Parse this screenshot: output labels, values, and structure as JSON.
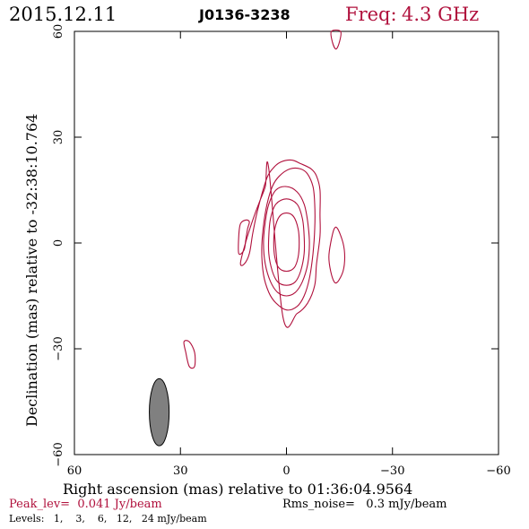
{
  "header": {
    "date": "2015.12.11",
    "source": "J0136-3238",
    "freq_label": "Freq:",
    "freq_value": "4.3 GHz"
  },
  "footer": {
    "peak": "Peak_lev=  0.041 Jy/beam",
    "rms": "Rms_noise=   0.3 mJy/beam",
    "levels": "Levels:   1,    3,    6,   12,   24 mJy/beam"
  },
  "colors": {
    "contour": "#b0103c",
    "frame": "#000000",
    "beam": "#808080"
  },
  "chart_data": {
    "type": "contour",
    "xlabel": "Right ascension (mas) relative to 01:36:04.9564",
    "ylabel": "Declination (mas) relative to -32:38:10.764",
    "xlim": [
      60,
      -60
    ],
    "ylim": [
      -60,
      60
    ],
    "xticks": [
      60,
      30,
      0,
      -30,
      -60
    ],
    "yticks": [
      -60,
      -30,
      0,
      30,
      60
    ],
    "contour_levels_mJy": [
      1,
      3,
      6,
      12,
      24
    ],
    "peak_Jy_per_beam": 0.041,
    "rms_mJy_per_beam": 0.3,
    "beam": {
      "x": 36,
      "y": -48,
      "major": 19,
      "minor": 5.6,
      "pa_deg": 0
    },
    "contours": [
      {
        "level": 1,
        "points": [
          [
            1,
            -21
          ],
          [
            -3,
            -20
          ],
          [
            -6,
            -17
          ],
          [
            -8,
            -12
          ],
          [
            -8.5,
            -6
          ],
          [
            -9.5,
            2
          ],
          [
            -9.5,
            8
          ],
          [
            -9.5,
            15
          ],
          [
            -8.5,
            19
          ],
          [
            -7,
            21
          ],
          [
            -4,
            22.5
          ],
          [
            -1.5,
            23.5
          ],
          [
            1.5,
            23
          ],
          [
            3.5,
            21.5
          ],
          [
            5.5,
            18.5
          ],
          [
            8,
            10
          ],
          [
            9.5,
            3
          ],
          [
            10.5,
            -3
          ],
          [
            12,
            -6
          ],
          [
            13,
            -5.5
          ],
          [
            11,
            2
          ],
          [
            9,
            8
          ],
          [
            7.5,
            12
          ],
          [
            6,
            16
          ],
          [
            5,
            21
          ]
        ]
      },
      {
        "level": 3,
        "points": [
          [
            0,
            -19
          ],
          [
            -3,
            -18
          ],
          [
            -5,
            -15
          ],
          [
            -6.5,
            -10
          ],
          [
            -7.5,
            -3
          ],
          [
            -8,
            4
          ],
          [
            -8,
            11
          ],
          [
            -7.5,
            16
          ],
          [
            -6,
            19.5
          ],
          [
            -4,
            21
          ],
          [
            -1,
            21
          ],
          [
            2,
            19
          ],
          [
            4,
            16
          ],
          [
            5.5,
            11
          ],
          [
            6.5,
            5
          ],
          [
            7,
            -2
          ],
          [
            6.5,
            -9
          ],
          [
            5,
            -14
          ],
          [
            3,
            -17
          ]
        ]
      },
      {
        "level": 6,
        "points": [
          [
            0,
            -15
          ],
          [
            -2.5,
            -14
          ],
          [
            -4.5,
            -11
          ],
          [
            -6,
            -6
          ],
          [
            -6.5,
            0
          ],
          [
            -6,
            6
          ],
          [
            -5,
            11
          ],
          [
            -3,
            14.5
          ],
          [
            0,
            16
          ],
          [
            3,
            15
          ],
          [
            5,
            11
          ],
          [
            6,
            6
          ],
          [
            6.5,
            0
          ],
          [
            6,
            -6
          ],
          [
            4.5,
            -11
          ],
          [
            2.5,
            -14
          ]
        ]
      },
      {
        "level": 12,
        "points": [
          [
            0,
            -12
          ],
          [
            -2.5,
            -11
          ],
          [
            -4,
            -8
          ],
          [
            -5,
            -3
          ],
          [
            -5,
            2
          ],
          [
            -4.5,
            7
          ],
          [
            -3,
            11
          ],
          [
            0,
            12.5
          ],
          [
            3,
            11
          ],
          [
            4.5,
            7
          ],
          [
            5,
            2
          ],
          [
            5,
            -3
          ],
          [
            4,
            -8
          ],
          [
            2.5,
            -11
          ]
        ]
      },
      {
        "level": 24,
        "points": [
          [
            0,
            -8
          ],
          [
            -2.2,
            -7
          ],
          [
            -3.3,
            -4
          ],
          [
            -3.6,
            0
          ],
          [
            -3.3,
            4
          ],
          [
            -2,
            7.5
          ],
          [
            0,
            8.5
          ],
          [
            2,
            7.5
          ],
          [
            3.3,
            4
          ],
          [
            3.6,
            0
          ],
          [
            3.3,
            -4
          ],
          [
            2.2,
            -7
          ]
        ]
      },
      {
        "level": 1,
        "points": [
          [
            13.5,
            -3
          ],
          [
            12,
            -2
          ],
          [
            11.5,
            1
          ],
          [
            11,
            4
          ],
          [
            10.5,
            6
          ],
          [
            11.5,
            6.5
          ],
          [
            13,
            5.5
          ],
          [
            13.5,
            2
          ]
        ]
      },
      {
        "level": 1,
        "points": [
          [
            -14.5,
            -11
          ],
          [
            -16,
            -8
          ],
          [
            -16.5,
            -4
          ],
          [
            -16,
            0
          ],
          [
            -14.5,
            4
          ],
          [
            -13.5,
            4
          ],
          [
            -12.5,
            0
          ],
          [
            -12,
            -4
          ],
          [
            -12.5,
            -8
          ],
          [
            -13.5,
            -11
          ]
        ]
      },
      {
        "level": 1,
        "points": [
          [
            29,
            -28
          ],
          [
            28.5,
            -31
          ],
          [
            27.5,
            -35
          ],
          [
            26,
            -35
          ],
          [
            26,
            -31
          ],
          [
            27.5,
            -28
          ]
        ]
      },
      {
        "level": 1,
        "points": [
          [
            -14,
            55
          ],
          [
            -13,
            57
          ],
          [
            -12.7,
            60
          ],
          [
            -15.3,
            60
          ],
          [
            -15,
            57
          ]
        ]
      }
    ]
  }
}
